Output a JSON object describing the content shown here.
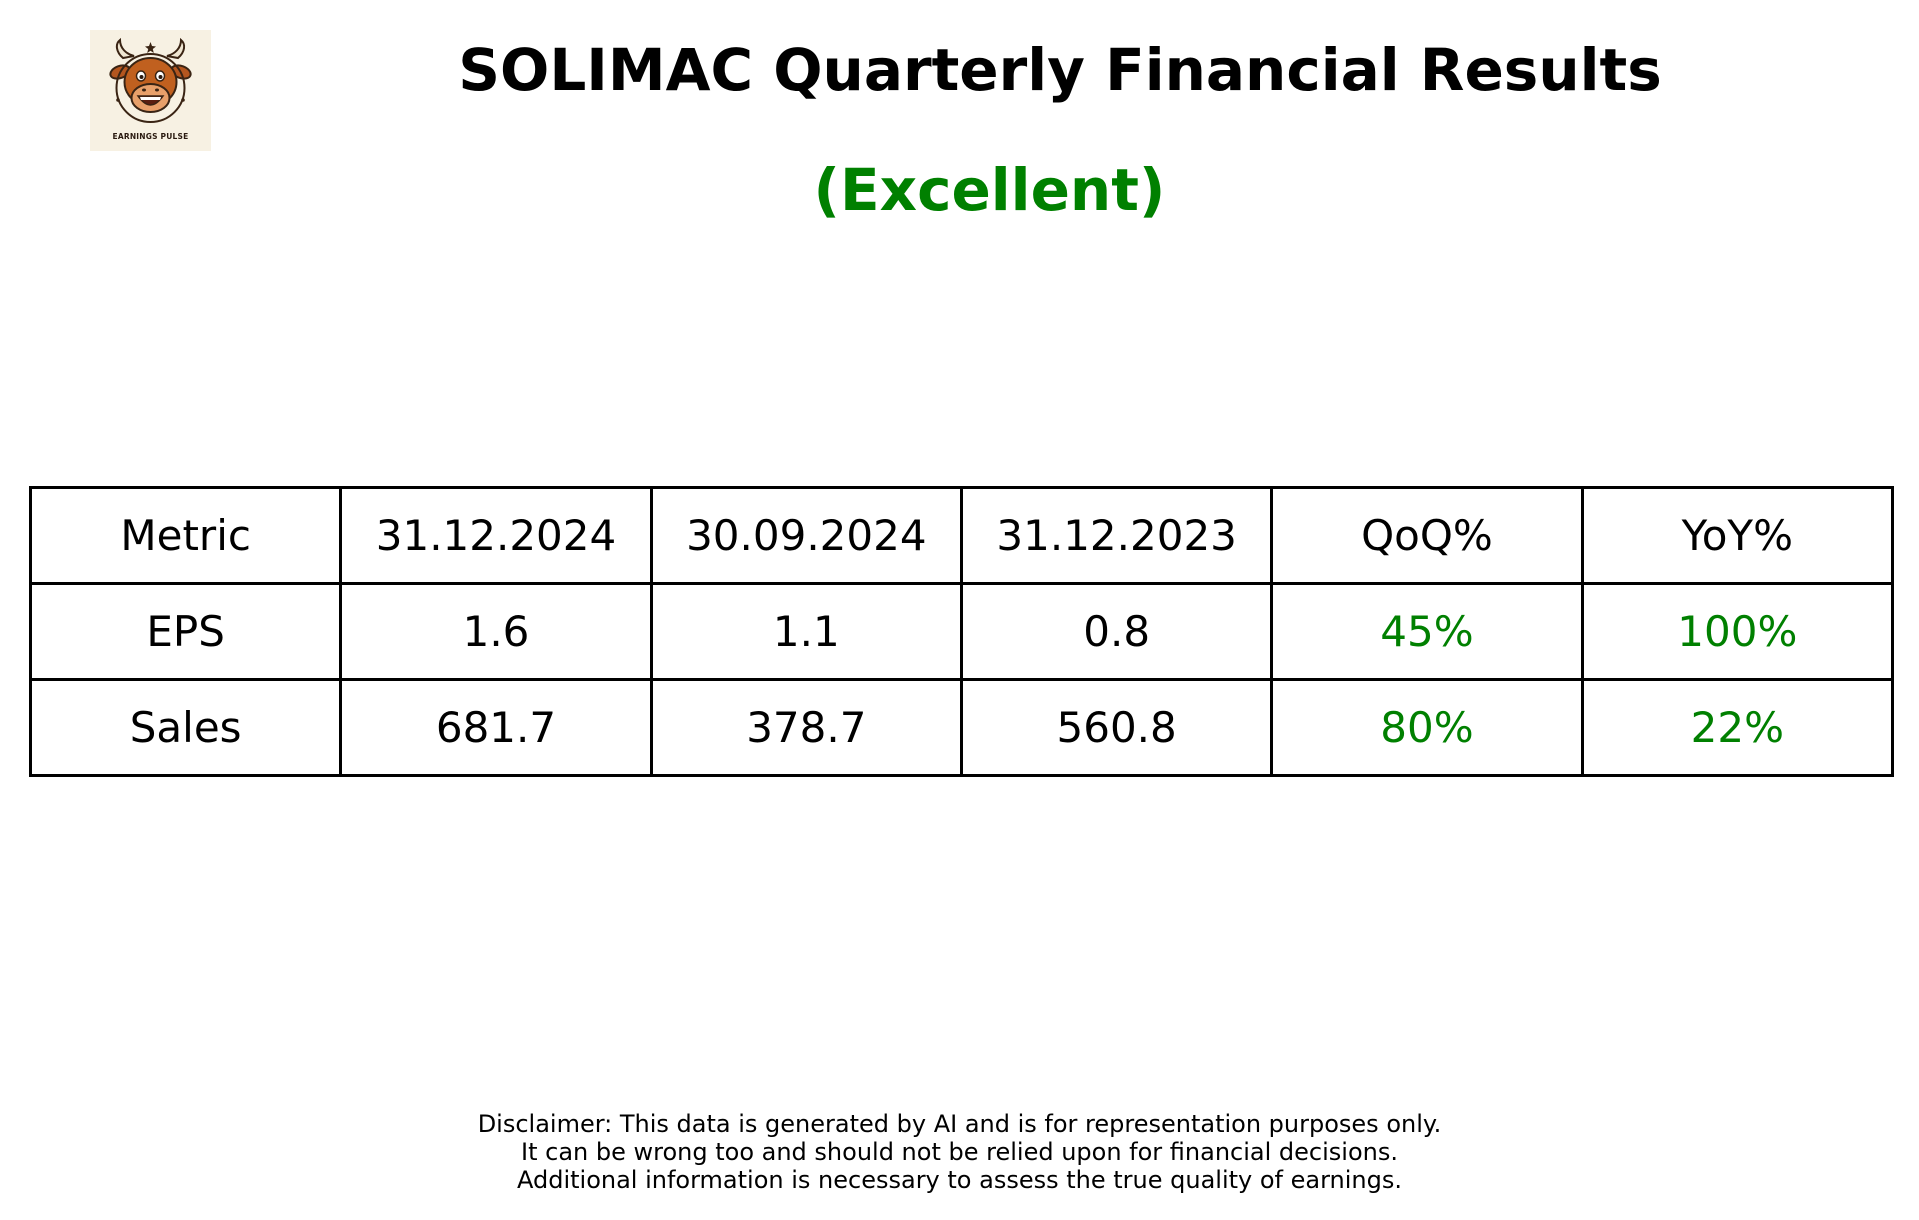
{
  "logo": {
    "icon": "bull-mascot-icon",
    "text": "EARNINGS PULSE"
  },
  "header": {
    "title": "SOLIMAC Quarterly Financial Results",
    "rating": "(Excellent)",
    "rating_color": "#008000"
  },
  "table": {
    "headers": [
      "Metric",
      "31.12.2024",
      "30.09.2024",
      "31.12.2023",
      "QoQ%",
      "YoY%"
    ],
    "rows": [
      {
        "metric": "EPS",
        "values": [
          "1.6",
          "1.1",
          "0.8"
        ],
        "qoq": "45%",
        "yoy": "100%"
      },
      {
        "metric": "Sales",
        "values": [
          "681.7",
          "378.7",
          "560.8"
        ],
        "qoq": "80%",
        "yoy": "22%"
      }
    ],
    "positive_color": "#008000"
  },
  "disclaimer": {
    "lines": [
      "Disclaimer: This data is generated by AI and is for representation purposes only.",
      "It can be wrong too and should not be relied upon for financial decisions.",
      "Additional information is necessary to assess the true quality of earnings."
    ]
  }
}
